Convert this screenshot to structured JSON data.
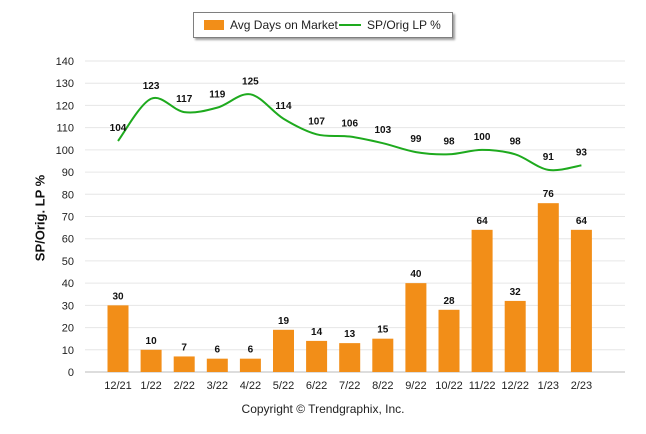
{
  "legend": {
    "bar_label": "Avg Days on Market",
    "line_label": "SP/Orig LP %"
  },
  "footer": {
    "copyright": "Copyright © Trendgraphix, Inc."
  },
  "colors": {
    "bar": "#f28e18",
    "line": "#1eaa1e",
    "grid": "#e6e6e6"
  },
  "chart_data": {
    "type": "bar",
    "title": "",
    "xlabel": "",
    "ylabel": "SP/Orig. LP %",
    "ylim": [
      0,
      140
    ],
    "yticks": [
      0,
      10,
      20,
      30,
      40,
      50,
      60,
      70,
      80,
      90,
      100,
      110,
      120,
      130,
      140
    ],
    "grid": true,
    "legend_position": "top-center",
    "categories": [
      "12/21",
      "1/22",
      "2/22",
      "3/22",
      "4/22",
      "5/22",
      "6/22",
      "7/22",
      "8/22",
      "9/22",
      "10/22",
      "11/22",
      "12/22",
      "1/23",
      "2/23"
    ],
    "series": [
      {
        "name": "Avg Days on Market",
        "type": "bar",
        "values": [
          30,
          10,
          7,
          6,
          6,
          19,
          14,
          13,
          15,
          40,
          28,
          64,
          32,
          76,
          64
        ]
      },
      {
        "name": "SP/Orig LP %",
        "type": "line",
        "values": [
          104,
          123,
          117,
          119,
          125,
          114,
          107,
          106,
          103,
          99,
          98,
          100,
          98,
          91,
          93
        ]
      }
    ]
  }
}
